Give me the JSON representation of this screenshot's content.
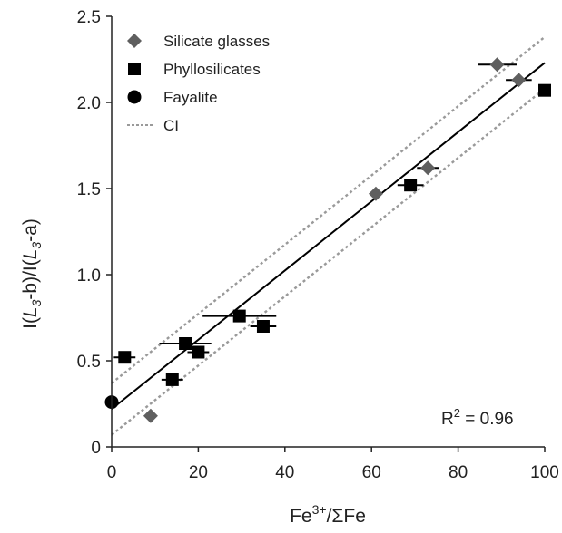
{
  "chart_data": {
    "type": "scatter",
    "xlabel": {
      "base": "Fe",
      "sup": "3+",
      "rest": "/ΣFe"
    },
    "ylabel": {
      "pre": "I(",
      "a": "L",
      "asub": "3",
      "amid": "-b)/I(",
      "b": "L",
      "bsub": "3",
      "post": "-a)"
    },
    "xlim": [
      0,
      100
    ],
    "ylim": [
      0,
      2.5
    ],
    "xticks": [
      "0",
      "20",
      "40",
      "60",
      "80",
      "100"
    ],
    "yticks": [
      "0",
      "0.5",
      "1.0",
      "1.5",
      "2.0",
      "2.5"
    ],
    "grid": false,
    "legend_position": "top-left",
    "series": [
      {
        "name": "Silicate glasses",
        "marker": "diamond",
        "color": "#5f5f5f",
        "points": [
          {
            "x": 9,
            "y": 0.18,
            "xerr": 0
          },
          {
            "x": 61,
            "y": 1.47,
            "xerr": 0
          },
          {
            "x": 73,
            "y": 1.62,
            "xerr": 2.5
          },
          {
            "x": 89,
            "y": 2.22,
            "xerr": 4.5
          },
          {
            "x": 94,
            "y": 2.13,
            "xerr": 3
          }
        ]
      },
      {
        "name": "Phyllosilicates",
        "marker": "square",
        "color": "#000000",
        "points": [
          {
            "x": 3,
            "y": 0.52,
            "xerr": 2.5
          },
          {
            "x": 14,
            "y": 0.39,
            "xerr": 2.5
          },
          {
            "x": 17,
            "y": 0.6,
            "xerr": 6
          },
          {
            "x": 20,
            "y": 0.55,
            "xerr": 2.5
          },
          {
            "x": 29.5,
            "y": 0.76,
            "xerr": 8.5
          },
          {
            "x": 35,
            "y": 0.7,
            "xerr": 3
          },
          {
            "x": 69,
            "y": 1.52,
            "xerr": 3
          },
          {
            "x": 100,
            "y": 2.07,
            "xerr": 0
          }
        ]
      },
      {
        "name": "Fayalite",
        "marker": "circle",
        "color": "#000000",
        "points": [
          {
            "x": 0,
            "y": 0.26,
            "xerr": 0
          }
        ]
      }
    ],
    "fit": {
      "intercept": 0.22,
      "slope": 0.0201,
      "color": "#000000"
    },
    "ci": {
      "name": "CI",
      "offsets": [
        -0.15,
        0.15
      ],
      "color": "#9a9a9a"
    },
    "annotation": {
      "base": "R",
      "sup": "2",
      "rest": " = 0.96"
    }
  }
}
